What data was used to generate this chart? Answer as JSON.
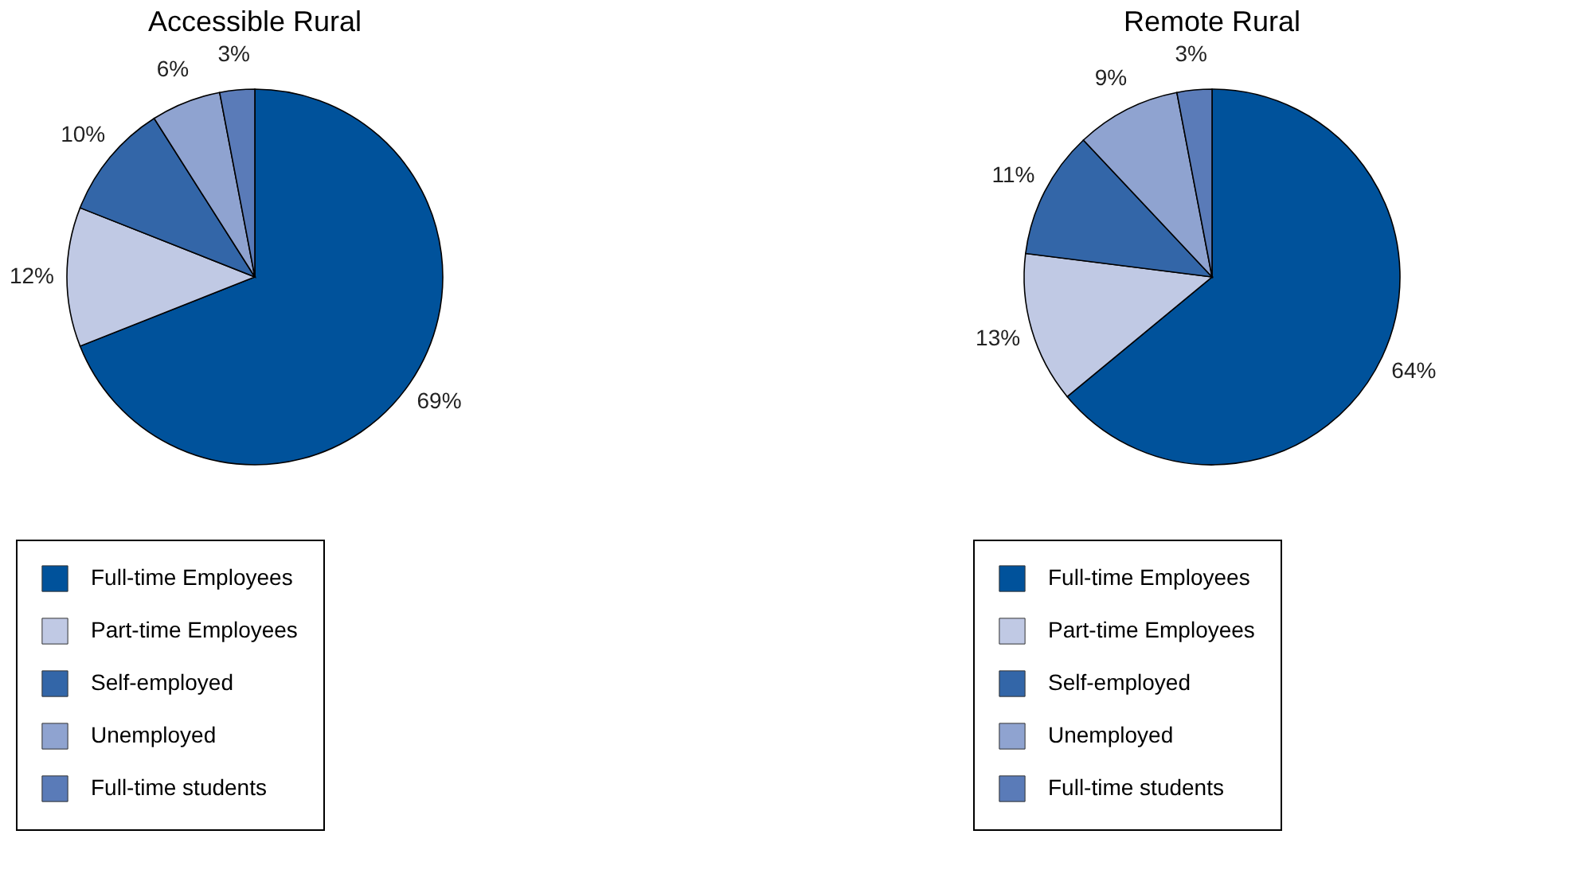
{
  "chart_data": [
    {
      "type": "pie",
      "title": "Accessible Rural",
      "categories": [
        "Full-time Employees",
        "Part-time Employees",
        "Self-employed",
        "Unemployed",
        "Full-time students"
      ],
      "values": [
        69,
        12,
        10,
        6,
        3
      ],
      "value_labels": [
        "69%",
        "12%",
        "10%",
        "6%",
        "3%"
      ],
      "colors": [
        "#00529b",
        "#c0c9e4",
        "#3366a8",
        "#8fa3d0",
        "#5a7bb8"
      ],
      "legend": "bottom"
    },
    {
      "type": "pie",
      "title": "Remote Rural",
      "categories": [
        "Full-time Employees",
        "Part-time Employees",
        "Self-employed",
        "Unemployed",
        "Full-time students"
      ],
      "values": [
        64,
        13,
        11,
        9,
        3
      ],
      "value_labels": [
        "64%",
        "13%",
        "11%",
        "9%",
        "3%"
      ],
      "colors": [
        "#00529b",
        "#c0c9e4",
        "#3366a8",
        "#8fa3d0",
        "#5a7bb8"
      ],
      "legend": "bottom"
    }
  ]
}
